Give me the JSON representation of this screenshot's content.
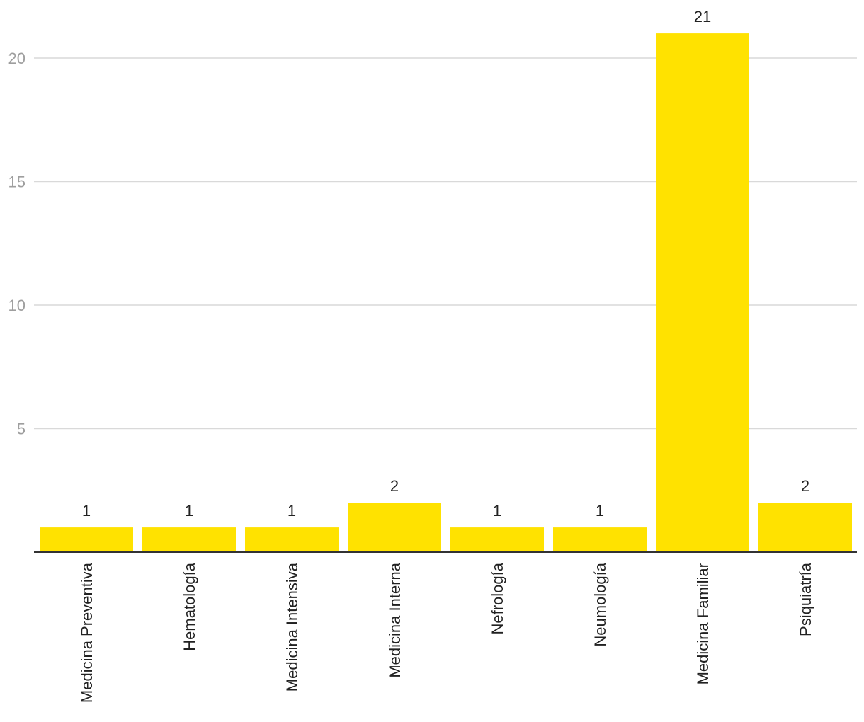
{
  "chart_data": {
    "type": "bar",
    "title": "",
    "xlabel": "",
    "ylabel": "",
    "categories": [
      "Medicina Preventiva",
      "Hematología",
      "Medicina Intensiva",
      "Medicina Interna",
      "Nefrología",
      "Neumología",
      "Medicina Familiar",
      "Psiquiatría"
    ],
    "values": [
      1,
      1,
      1,
      2,
      1,
      1,
      21,
      2
    ],
    "data_labels": [
      "1",
      "1",
      "1",
      "2",
      "1",
      "1",
      "21",
      "2"
    ],
    "ylim": [
      0,
      22.5
    ],
    "yticks": [
      5,
      10,
      15,
      20
    ],
    "ytick_labels": [
      "5",
      "10",
      "15",
      "20"
    ],
    "grid": true,
    "legend": "none",
    "bar_color": "#FFE200"
  }
}
